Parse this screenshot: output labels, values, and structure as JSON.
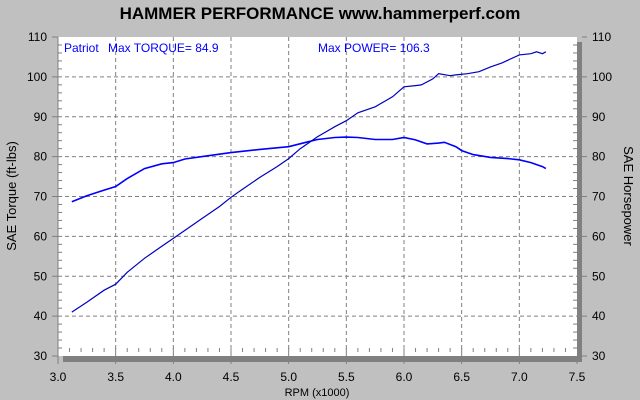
{
  "chart_data": {
    "type": "line",
    "title": "HAMMER PERFORMANCE www.hammerperf.com",
    "xlabel": "RPM (x1000)",
    "ylabel_left": "SAE Torque (ft-lbs)",
    "ylabel_right": "SAE Horsepower",
    "xlim": [
      3.0,
      7.5
    ],
    "ylim": [
      30,
      110
    ],
    "x_ticks": [
      "3.0",
      "3.5",
      "4.0",
      "4.5",
      "5.0",
      "5.5",
      "6.0",
      "6.5",
      "7.0",
      "7.5"
    ],
    "y_ticks": [
      "30",
      "40",
      "50",
      "60",
      "70",
      "80",
      "90",
      "100",
      "110"
    ],
    "grid": true,
    "annotations": {
      "run_name": "Patriot",
      "max_torque": "Max TORQUE= 84.9",
      "max_power": "Max POWER= 106.3"
    },
    "series": [
      {
        "key": "torque",
        "color": "#0000ff",
        "x": [
          3.12,
          3.25,
          3.4,
          3.5,
          3.6,
          3.75,
          3.9,
          4.0,
          4.1,
          4.25,
          4.5,
          4.75,
          5.0,
          5.15,
          5.25,
          5.4,
          5.5,
          5.6,
          5.75,
          5.9,
          6.0,
          6.1,
          6.2,
          6.3,
          6.35,
          6.45,
          6.5,
          6.6,
          6.75,
          6.9,
          7.0,
          7.1,
          7.15,
          7.2,
          7.23
        ],
        "y": [
          68.7,
          70.2,
          71.6,
          72.5,
          74.5,
          77.0,
          78.2,
          78.5,
          79.4,
          80.0,
          81.0,
          81.8,
          82.5,
          83.6,
          84.3,
          84.8,
          84.9,
          84.8,
          84.3,
          84.3,
          84.8,
          84.2,
          83.2,
          83.4,
          83.6,
          82.5,
          81.5,
          80.5,
          79.8,
          79.5,
          79.2,
          78.5,
          78.0,
          77.5,
          77.0
        ]
      },
      {
        "key": "power",
        "color": "#0000c0",
        "x": [
          3.12,
          3.25,
          3.4,
          3.5,
          3.6,
          3.75,
          3.9,
          4.0,
          4.1,
          4.25,
          4.4,
          4.5,
          4.6,
          4.75,
          4.9,
          5.0,
          5.1,
          5.25,
          5.4,
          5.5,
          5.6,
          5.75,
          5.9,
          6.0,
          6.1,
          6.15,
          6.25,
          6.3,
          6.4,
          6.45,
          6.55,
          6.65,
          6.75,
          6.85,
          7.0,
          7.1,
          7.15,
          7.2,
          7.23
        ],
        "y": [
          41.0,
          43.5,
          46.5,
          48.0,
          51.0,
          54.5,
          57.5,
          59.5,
          61.5,
          64.5,
          67.5,
          69.8,
          71.8,
          74.8,
          77.5,
          79.5,
          82.0,
          85.0,
          87.5,
          89.0,
          91.0,
          92.5,
          95.0,
          97.5,
          97.8,
          98.0,
          99.5,
          100.8,
          100.3,
          100.5,
          100.8,
          101.3,
          102.5,
          103.5,
          105.5,
          105.8,
          106.3,
          105.8,
          106.3
        ]
      }
    ]
  }
}
